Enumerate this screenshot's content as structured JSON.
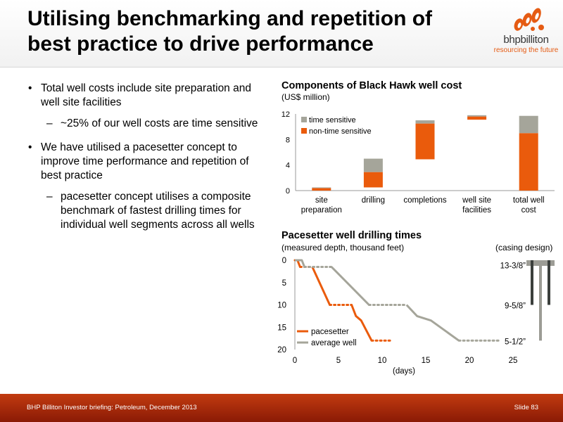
{
  "slide": {
    "title": "Utilising benchmarking and repetition of best practice to drive performance",
    "footer_left": "BHP Billiton Investor briefing: Petroleum, December 2013",
    "footer_right": "Slide 83"
  },
  "logo": {
    "name": "bhpbilliton",
    "tagline": "resourcing the future",
    "icon": "bhp-logo-icon"
  },
  "bullets": [
    {
      "level": 1,
      "text": "Total well costs include site preparation and well site facilities"
    },
    {
      "level": 2,
      "text": "~25% of our well costs are time sensitive"
    },
    {
      "level": 1,
      "text": "We have utilised a pacesetter concept to improve time performance and repetition of best practice"
    },
    {
      "level": 2,
      "text": "pacesetter concept utilises a composite benchmark of fastest drilling times for individual well segments across all wells"
    }
  ],
  "colors": {
    "non_time_sensitive": "#ea5b0c",
    "time_sensitive": "#a5a59a",
    "pacesetter": "#ea5b0c",
    "average": "#a5a59a"
  },
  "chart_data": [
    {
      "type": "bar",
      "subtype": "waterfall",
      "title": "Components of Black Hawk well cost",
      "subtitle": "(US$ million)",
      "categories": [
        "site preparation",
        "drilling",
        "completions",
        "well site facilities",
        "total well cost"
      ],
      "ylim": [
        0,
        12
      ],
      "yticks": [
        0,
        4,
        8,
        12
      ],
      "legend": [
        "time sensitive",
        "non-time sensitive"
      ],
      "legend_position": "top-left",
      "grid": false,
      "series": [
        {
          "name": "non-time sensitive",
          "bottom": [
            0,
            0.5,
            4.9,
            11.1,
            0
          ],
          "values": [
            0.4,
            2.4,
            5.6,
            0.5,
            9.0
          ]
        },
        {
          "name": "time sensitive",
          "bottom": [
            0.4,
            2.9,
            10.5,
            11.6,
            9.0
          ],
          "values": [
            0.1,
            2.1,
            0.5,
            0.2,
            2.7
          ]
        }
      ]
    },
    {
      "type": "line",
      "title": "Pacesetter well drilling times",
      "subtitle": "(measured depth, thousand feet)",
      "xlabel": "(days)",
      "xlim": [
        0,
        25
      ],
      "ylim": [
        0,
        20
      ],
      "y_inverted": true,
      "xticks": [
        0,
        5,
        10,
        15,
        20,
        25
      ],
      "yticks": [
        0,
        5,
        10,
        15,
        20
      ],
      "legend_position": "bottom-left",
      "casing": {
        "label": "(casing design)",
        "sizes": [
          {
            "label": "13-3/8”",
            "depth": 1
          },
          {
            "label": "9-5/8”",
            "depth": 10
          },
          {
            "label": "5-1/2”",
            "depth": 18
          }
        ]
      },
      "series": [
        {
          "name": "pacesetter",
          "segments": [
            {
              "style": "dotted",
              "points": [
                [
                  0,
                  0
                ],
                [
                  0.3,
                  0
                ]
              ]
            },
            {
              "style": "solid",
              "points": [
                [
                  0.3,
                  0
                ],
                [
                  0.6,
                  1.5
                ]
              ]
            },
            {
              "style": "dotted",
              "points": [
                [
                  0.6,
                  1.5
                ],
                [
                  2.0,
                  1.5
                ]
              ]
            },
            {
              "style": "solid",
              "points": [
                [
                  2.0,
                  1.5
                ],
                [
                  4.0,
                  10
                ]
              ]
            },
            {
              "style": "dotted",
              "points": [
                [
                  4.0,
                  10
                ],
                [
                  6.5,
                  10
                ]
              ]
            },
            {
              "style": "solid",
              "points": [
                [
                  6.5,
                  10
                ],
                [
                  7.0,
                  12.5
                ],
                [
                  7.6,
                  13.5
                ],
                [
                  8.8,
                  18
                ]
              ]
            },
            {
              "style": "dotted",
              "points": [
                [
                  8.8,
                  18
                ],
                [
                  11.0,
                  18
                ]
              ]
            }
          ]
        },
        {
          "name": "average well",
          "segments": [
            {
              "style": "solid",
              "points": [
                [
                  0,
                  0
                ],
                [
                  0.8,
                  0
                ],
                [
                  1.1,
                  1.5
                ]
              ]
            },
            {
              "style": "dotted",
              "points": [
                [
                  1.1,
                  1.5
                ],
                [
                  4.2,
                  1.5
                ]
              ]
            },
            {
              "style": "solid",
              "points": [
                [
                  4.2,
                  1.5
                ],
                [
                  8.5,
                  10
                ]
              ]
            },
            {
              "style": "dotted",
              "points": [
                [
                  8.5,
                  10
                ],
                [
                  12.8,
                  10
                ]
              ]
            },
            {
              "style": "solid",
              "points": [
                [
                  12.8,
                  10
                ],
                [
                  14.0,
                  12.5
                ],
                [
                  15.6,
                  13.5
                ],
                [
                  18.8,
                  18
                ]
              ]
            },
            {
              "style": "dotted",
              "points": [
                [
                  18.8,
                  18
                ],
                [
                  23.5,
                  18
                ]
              ]
            }
          ]
        }
      ]
    }
  ]
}
